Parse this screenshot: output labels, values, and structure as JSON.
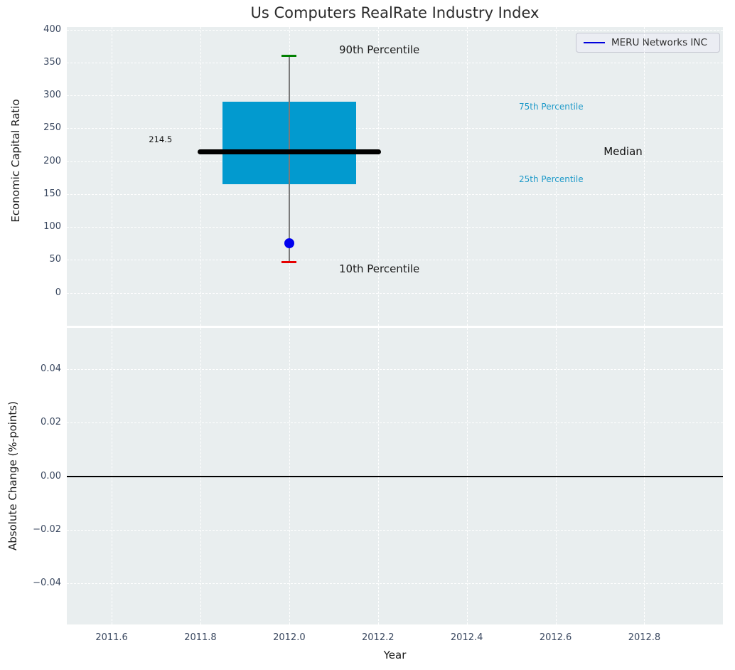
{
  "figure": {
    "panel_background": "#e9eeef",
    "grid_color": "#ffffff",
    "tick_color": "#39475f"
  },
  "chart_data": {
    "type": "box",
    "title": "Us Computers RealRate Industry Index",
    "xlabel": "Year",
    "xlim": [
      2011.499,
      2012.977
    ],
    "xticks": [
      {
        "v": 2011.6,
        "label": "2011.6"
      },
      {
        "v": 2011.8,
        "label": "2011.8"
      },
      {
        "v": 2012.0,
        "label": "2012.0"
      },
      {
        "v": 2012.2,
        "label": "2012.2"
      },
      {
        "v": 2012.4,
        "label": "2012.4"
      },
      {
        "v": 2012.6,
        "label": "2012.6"
      },
      {
        "v": 2012.8,
        "label": "2012.8"
      }
    ],
    "legend": {
      "position": "top-right",
      "entries": [
        {
          "label": "MERU Networks INC",
          "color": "#0000dd"
        }
      ]
    },
    "top_panel": {
      "ylabel": "Economic Capital Ratio",
      "ylim": [
        -50,
        404
      ],
      "yticks": [
        {
          "v": 400,
          "label": "400"
        },
        {
          "v": 350,
          "label": "350"
        },
        {
          "v": 300,
          "label": "300"
        },
        {
          "v": 250,
          "label": "250"
        },
        {
          "v": 200,
          "label": "200"
        },
        {
          "v": 150,
          "label": "150"
        },
        {
          "v": 100,
          "label": "100"
        },
        {
          "v": 50,
          "label": "50"
        },
        {
          "v": 0,
          "label": "0"
        }
      ],
      "box": {
        "x": 2012.0,
        "p90": 360,
        "p75": 290,
        "median": 214.5,
        "p25": 165,
        "p10": 47,
        "company_point": 75.5,
        "median_value_label": "214.5",
        "box_half_width": 0.15,
        "median_half_width": 0.206,
        "cap_half_width": 0.017,
        "colors": {
          "box_fill": "#029acf",
          "median": "#000000",
          "whisker": "#7a7a7a",
          "p90_cap": "#008000",
          "p10_cap": "#e60000",
          "company_dot": "#0000ee"
        }
      },
      "annotations": [
        {
          "text": "90th Percentile",
          "x": 2012.203,
          "y": 369,
          "color": "#1a1a1a",
          "size": 15
        },
        {
          "text": "10th Percentile",
          "x": 2012.203,
          "y": 36,
          "color": "#1a1a1a",
          "size": 15
        },
        {
          "text": "75th Percentile",
          "x": 2012.59,
          "y": 283,
          "color": "#1f9ac9",
          "size": 12
        },
        {
          "text": "25th Percentile",
          "x": 2012.59,
          "y": 173,
          "color": "#1f9ac9",
          "size": 12
        },
        {
          "text": "Median",
          "x": 2012.752,
          "y": 215,
          "color": "#111111",
          "size": 15
        },
        {
          "text": "214.5",
          "x": 2011.71,
          "y": 233,
          "color": "#111111",
          "size": 11.5
        }
      ]
    },
    "bottom_panel": {
      "ylabel": "Absolute Change (%-points)",
      "ylim": [
        -0.0553,
        0.0553
      ],
      "yticks": [
        {
          "v": 0.04,
          "label": "0.04"
        },
        {
          "v": 0.02,
          "label": "0.02"
        },
        {
          "v": 0.0,
          "label": "0.00"
        },
        {
          "v": -0.02,
          "label": "−0.02"
        },
        {
          "v": -0.04,
          "label": "−0.04"
        }
      ],
      "zero_line": 0.0
    }
  }
}
